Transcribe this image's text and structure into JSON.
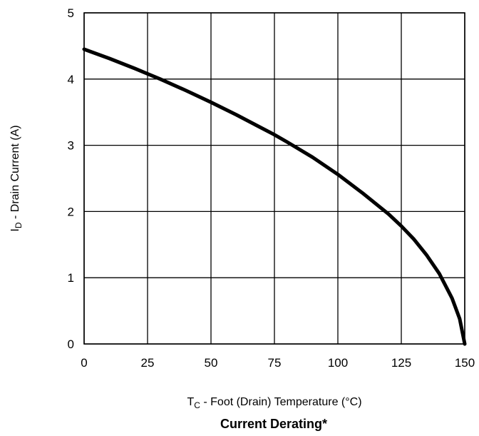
{
  "chart_data": {
    "type": "line",
    "title": "Current Derating*",
    "xlabel": {
      "main": "T",
      "sub": "C",
      "rest": " - Foot (Drain) Temperature (°C)"
    },
    "ylabel": {
      "main": "I",
      "sub": "D",
      "rest": " - Drain Current (A)"
    },
    "xlim": [
      0,
      150
    ],
    "ylim": [
      0,
      5
    ],
    "xticks": [
      0,
      25,
      50,
      75,
      100,
      125,
      150
    ],
    "yticks": [
      0,
      1,
      2,
      3,
      4,
      5
    ],
    "grid": true,
    "series": [
      {
        "x": [
          0,
          10,
          20,
          25,
          30,
          40,
          50,
          60,
          70,
          75,
          80,
          90,
          100,
          110,
          120,
          125,
          130,
          135,
          140,
          145,
          148,
          150
        ],
        "values": [
          4.45,
          4.31,
          4.16,
          4.08,
          4.0,
          3.83,
          3.65,
          3.46,
          3.26,
          3.16,
          3.05,
          2.82,
          2.56,
          2.27,
          1.96,
          1.78,
          1.58,
          1.34,
          1.06,
          0.69,
          0.38,
          0.0
        ]
      }
    ]
  }
}
